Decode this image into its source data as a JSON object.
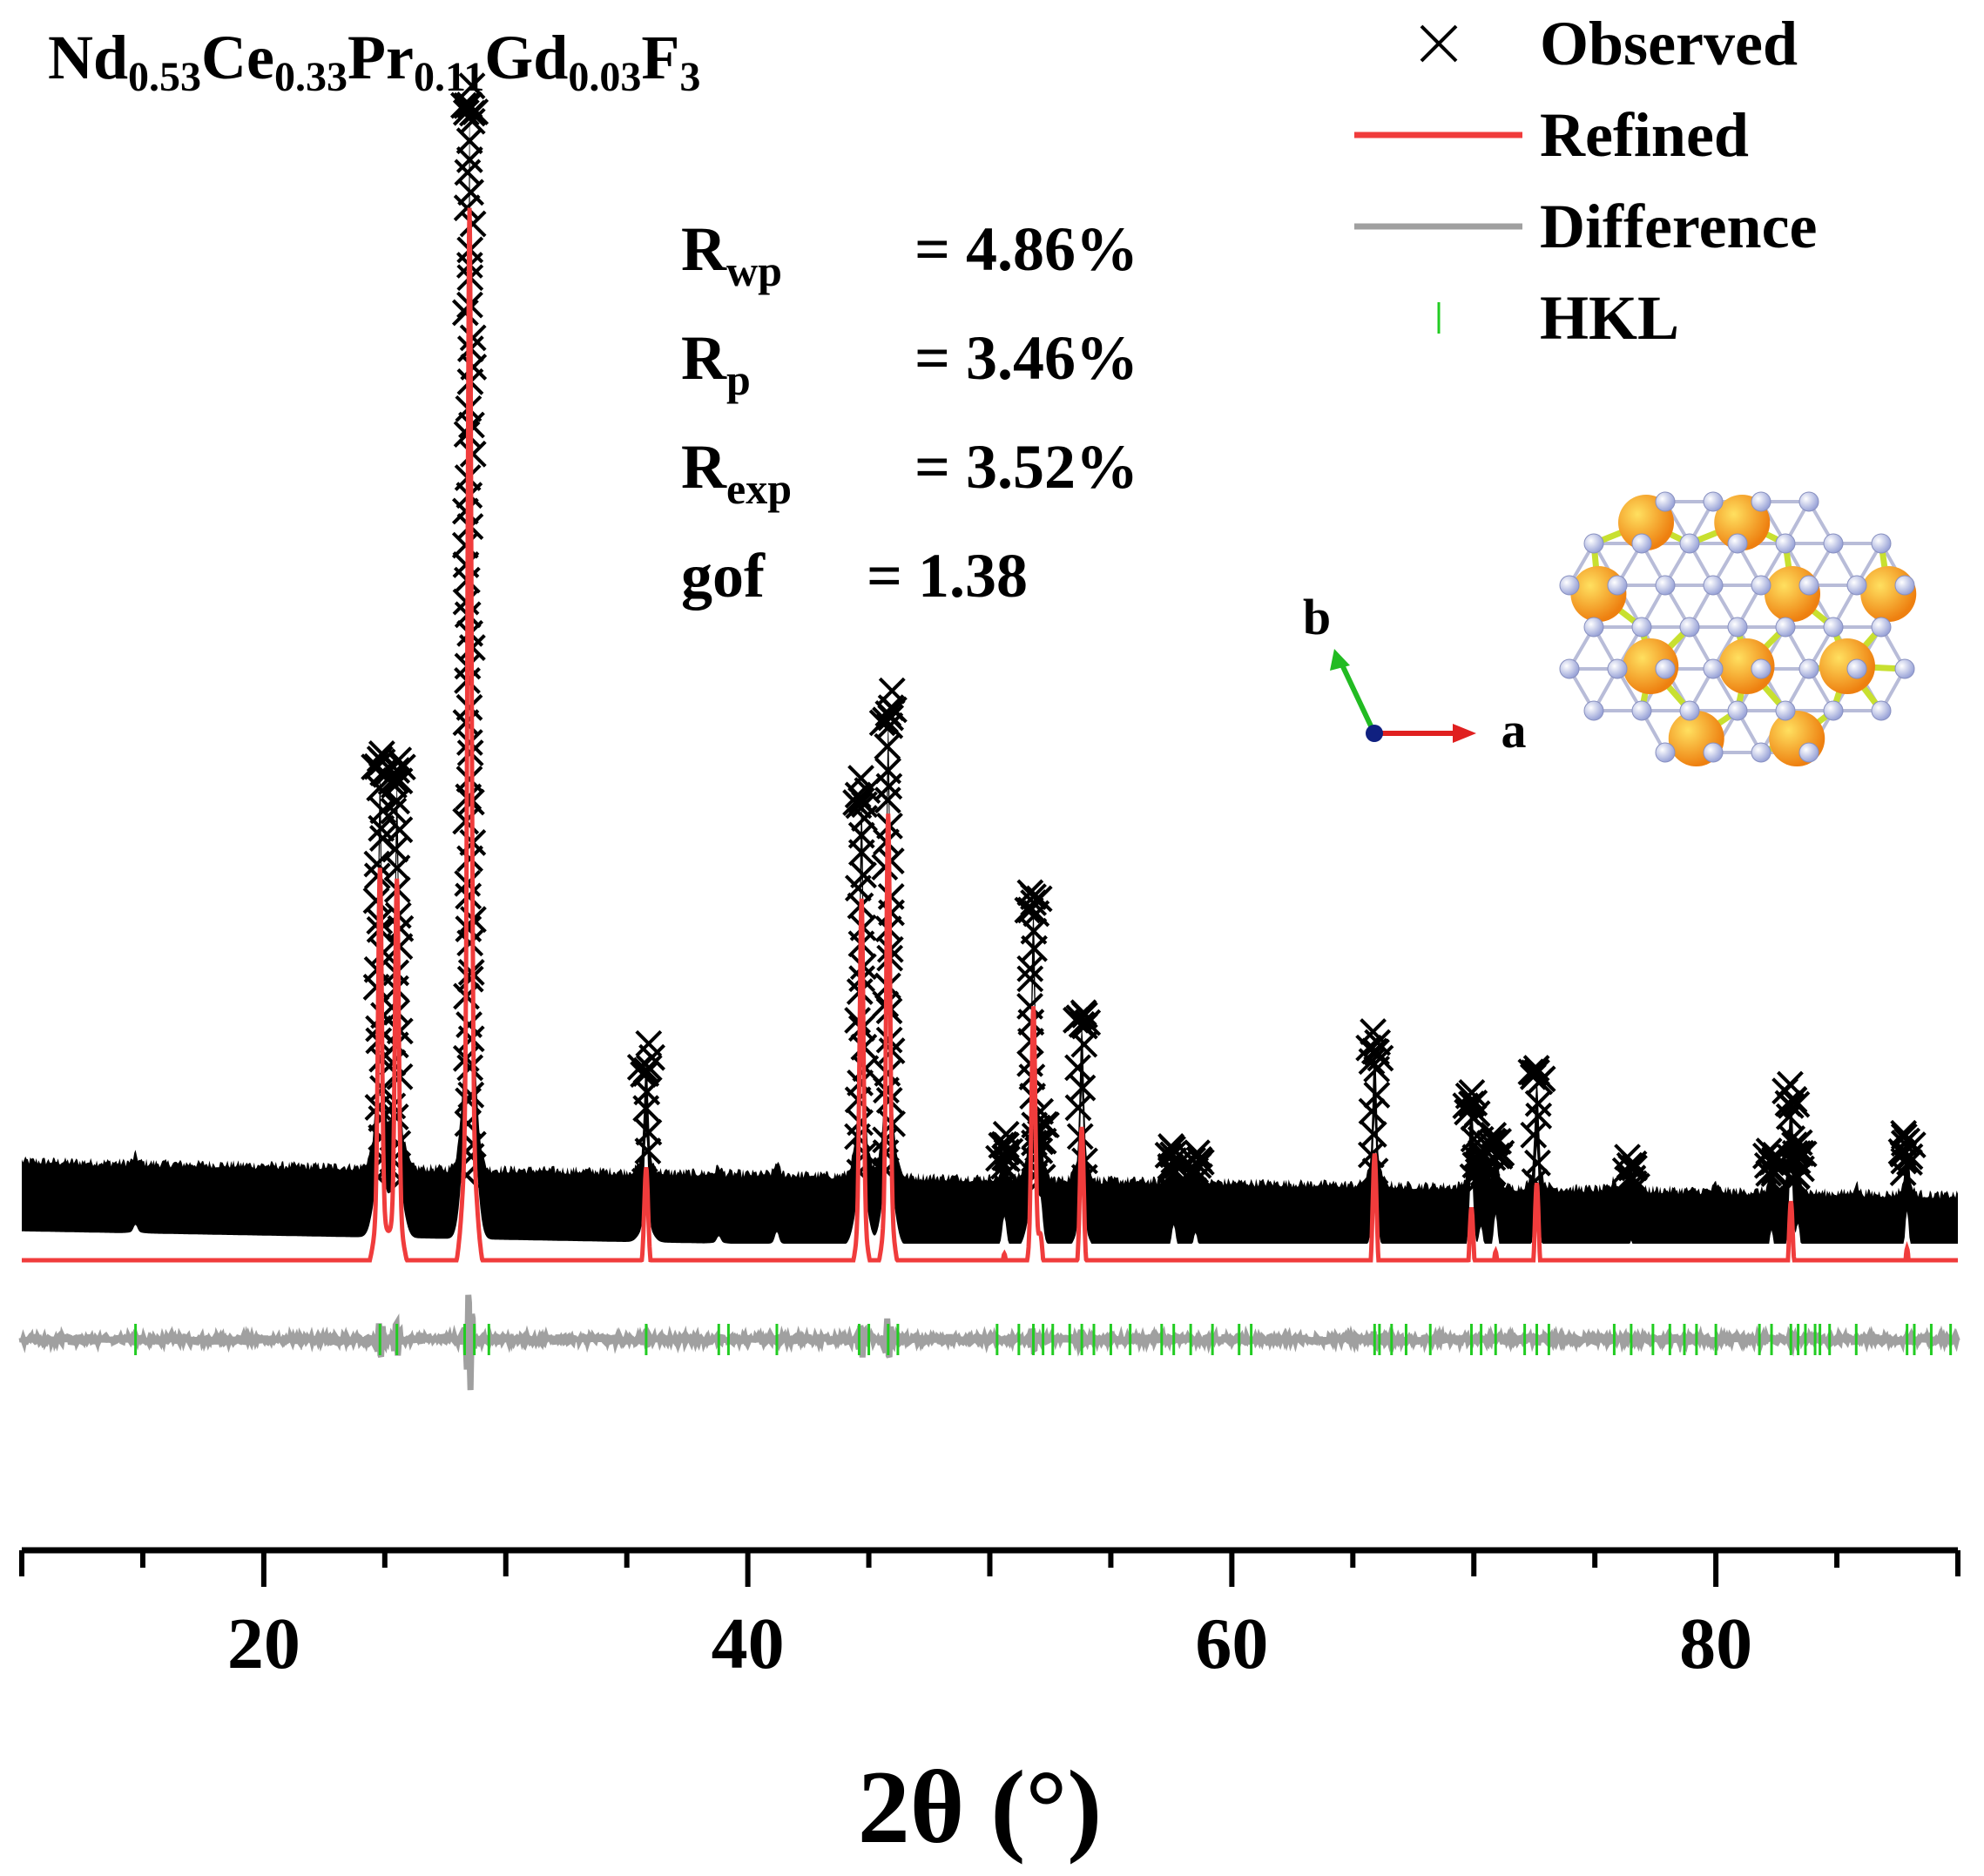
{
  "chart_data": {
    "type": "line",
    "title_parts": [
      {
        "base": "Nd",
        "sub": "0.53"
      },
      {
        "base": "Ce",
        "sub": "0.33"
      },
      {
        "base": "Pr",
        "sub": "0.11"
      },
      {
        "base": "Gd",
        "sub": "0.03"
      },
      {
        "base": "F",
        "sub": "3"
      }
    ],
    "xlabel": "2θ (°)",
    "ylabel": "",
    "xlim": [
      10,
      90
    ],
    "ylim": [
      0,
      100
    ],
    "xticks": [
      20,
      40,
      60,
      80
    ],
    "xtick_labels": [
      "20",
      "40",
      "60",
      "80"
    ],
    "legend": {
      "position": "top-right",
      "items": [
        {
          "label": "Observed",
          "kind": "marker-x",
          "color": "#000000"
        },
        {
          "label": "Refined",
          "kind": "line",
          "color": "#f03c3c"
        },
        {
          "label": "Difference",
          "kind": "line",
          "color": "#a0a0a0"
        },
        {
          "label": "HKL",
          "kind": "tick",
          "color": "#22cc22"
        }
      ]
    },
    "stats": [
      {
        "name": "R",
        "sub": "wp",
        "value": "= 4.86%"
      },
      {
        "name": "R",
        "sub": "p",
        "value": "= 3.46%"
      },
      {
        "name": "R",
        "sub": "exp",
        "value": "= 3.52%"
      },
      {
        "name": "gof",
        "sub": "",
        "value": "= 1.38"
      }
    ],
    "background_level": 5.5,
    "difference_offset": -7,
    "peaks": [
      {
        "x": 14.7,
        "y": 0.8
      },
      {
        "x": 24.8,
        "y": 38
      },
      {
        "x": 25.5,
        "y": 37
      },
      {
        "x": 28.5,
        "y": 100
      },
      {
        "x": 35.8,
        "y": 10.5
      },
      {
        "x": 38.8,
        "y": 0.7
      },
      {
        "x": 41.2,
        "y": 1.2
      },
      {
        "x": 44.7,
        "y": 36
      },
      {
        "x": 45.8,
        "y": 44
      },
      {
        "x": 50.6,
        "y": 3
      },
      {
        "x": 51.8,
        "y": 26
      },
      {
        "x": 52.1,
        "y": 3
      },
      {
        "x": 53.8,
        "y": 15
      },
      {
        "x": 57.6,
        "y": 2.5
      },
      {
        "x": 58.5,
        "y": 1.8
      },
      {
        "x": 65.9,
        "y": 13
      },
      {
        "x": 69.9,
        "y": 8
      },
      {
        "x": 70.3,
        "y": 2.5
      },
      {
        "x": 70.9,
        "y": 4
      },
      {
        "x": 72.6,
        "y": 10.5
      },
      {
        "x": 75.8,
        "y": 1
      },
      {
        "x": 76.5,
        "y": 1.8
      },
      {
        "x": 80.0,
        "y": 0.7
      },
      {
        "x": 82.3,
        "y": 3
      },
      {
        "x": 83.1,
        "y": 9
      },
      {
        "x": 83.4,
        "y": 3
      },
      {
        "x": 85.8,
        "y": 1
      },
      {
        "x": 87.9,
        "y": 5
      }
    ],
    "hkl": [
      14.7,
      24.8,
      25.5,
      28.3,
      28.7,
      29.3,
      35.8,
      38.8,
      39.2,
      41.2,
      44.6,
      45.0,
      45.8,
      46.2,
      50.3,
      51.2,
      51.8,
      52.2,
      52.6,
      53.3,
      53.8,
      54.3,
      55.0,
      55.8,
      57.1,
      57.6,
      58.3,
      59.2,
      60.3,
      60.8,
      65.9,
      66.1,
      66.6,
      67.2,
      68.2,
      69.9,
      70.3,
      70.9,
      72.1,
      72.6,
      73.1,
      75.8,
      76.5,
      77.4,
      78.1,
      78.7,
      79.2,
      80.0,
      81.8,
      82.3,
      83.1,
      83.4,
      83.7,
      84.1,
      84.3,
      84.7,
      85.8,
      87.9,
      88.2,
      88.9,
      89.7
    ],
    "structure_axes": {
      "b": "b",
      "a": "a"
    }
  }
}
